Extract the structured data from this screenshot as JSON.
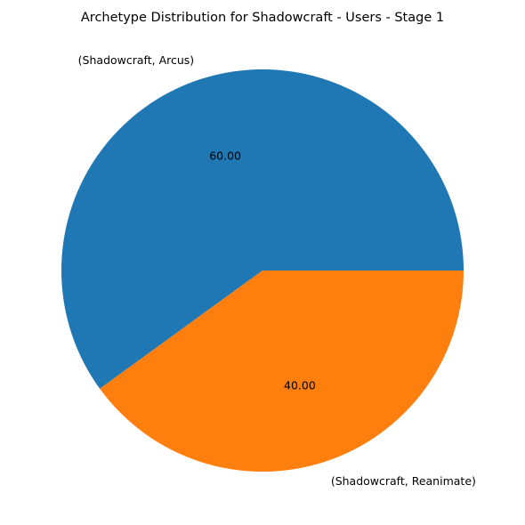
{
  "chart_data": {
    "type": "pie",
    "title": "Archetype Distribution for Shadowcraft - Users - Stage 1",
    "categories": [
      "(Shadowcraft, Arcus)",
      "(Shadowcraft, Reanimate)"
    ],
    "values": [
      60.0,
      40.0
    ],
    "value_labels": [
      "60.00",
      "40.00"
    ],
    "colors": [
      "#1f77b4",
      "#ff7f0e"
    ],
    "start_angle_deg": 0,
    "direction": "counterclockwise",
    "legend": "none"
  }
}
